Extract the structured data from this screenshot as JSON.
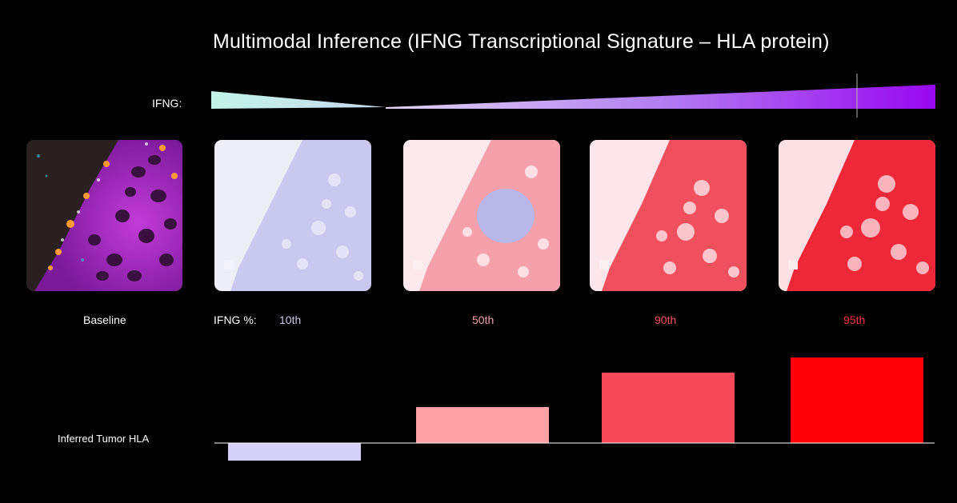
{
  "title": "Multimodal Inference (IFNG Transcriptional Signature – HLA protein)",
  "ifng_label": "IFNG:",
  "baseline_label": "Baseline",
  "ifng_pct_label": "IFNG %:",
  "percentiles": [
    {
      "label": "10th",
      "color": "#c8c8f0"
    },
    {
      "label": "50th",
      "color": "#f0a0a8"
    },
    {
      "label": "90th",
      "color": "#ff5060"
    },
    {
      "label": "95th",
      "color": "#ff3040"
    }
  ],
  "hla_label": "Inferred Tumor HLA",
  "colors": {
    "gradient_start": "#bff0e0",
    "gradient_end": "#9b10f0",
    "bar_10th": "#d4d2f8",
    "bar_50th": "#fca0a6",
    "bar_90th": "#f64a58",
    "bar_95th": "#ff0008"
  },
  "chart_data": {
    "type": "bar",
    "categories": [
      "10th",
      "50th",
      "90th",
      "95th"
    ],
    "values": [
      -22,
      45,
      88,
      107
    ],
    "ylabel": "Inferred Tumor HLA",
    "baseline_value": 0
  }
}
